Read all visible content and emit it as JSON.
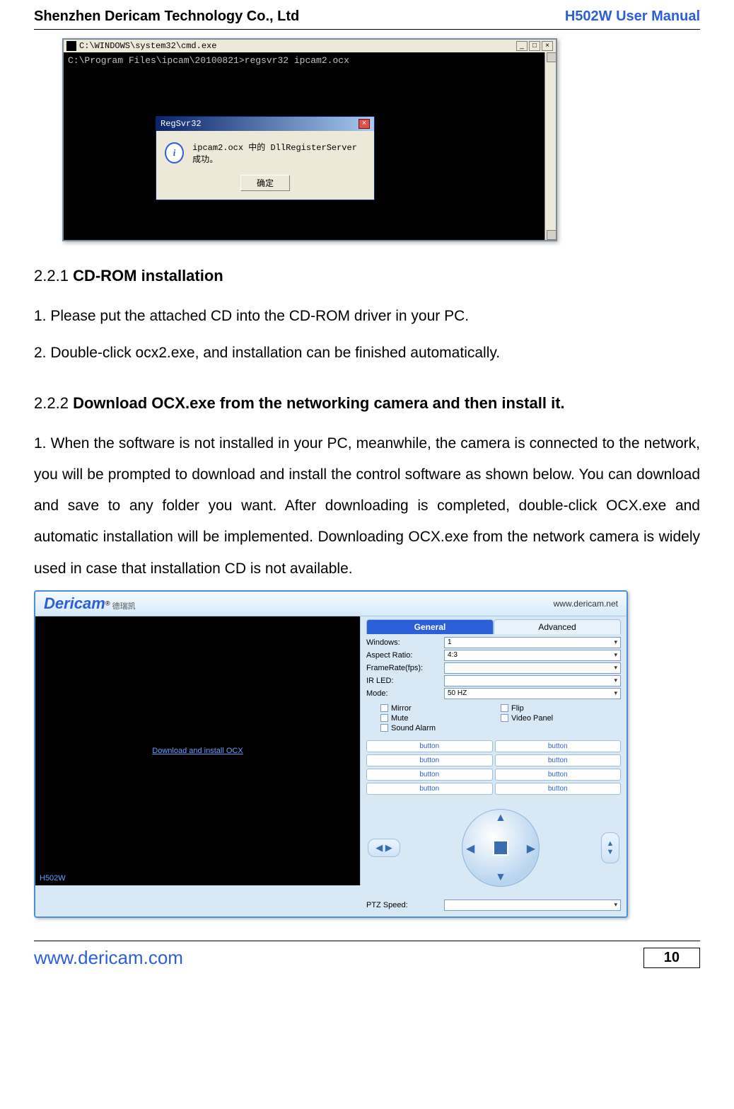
{
  "header": {
    "company": "Shenzhen Dericam Technology Co., Ltd",
    "doc_title": "H502W User Manual"
  },
  "cmd": {
    "title": "C:\\WINDOWS\\system32\\cmd.exe",
    "prompt": "C:\\Program Files\\ipcam\\20100821>regsvr32 ipcam2.ocx",
    "dialog_title": "RegSvr32",
    "dialog_msg": "ipcam2.ocx 中的 DllRegisterServer 成功。",
    "dialog_ok": "确定"
  },
  "sections": {
    "s1_num": "2.2.1",
    "s1_title": "CD-ROM installation",
    "s1_p1": "1. Please put the attached CD into the CD-ROM driver in your PC.",
    "s1_p2": "2. Double-click ocx2.exe, and installation can be finished automatically.",
    "s2_num": "2.2.2",
    "s2_title": "Download OCX.exe from the networking camera and then install it.",
    "s2_p1": "1. When the software is not installed in your PC, meanwhile, the camera is connected to the network, you will be prompted to download and install the control software as shown below. You can download and save to any folder you want. After downloading is completed, double-click OCX.exe and automatic installation will be implemented. Downloading OCX.exe from the network camera is widely used in case that installation CD is not available."
  },
  "ui": {
    "logo": "Dericam",
    "logo_cn": "德瑞凯",
    "url": "www.dericam.net",
    "video_link": "Download and install OCX",
    "model": "H502W",
    "tabs": {
      "general": "General",
      "advanced": "Advanced"
    },
    "rows": {
      "windows": {
        "label": "Windows:",
        "value": "1"
      },
      "aspect": {
        "label": "Aspect Ratio:",
        "value": "4:3"
      },
      "framerate": {
        "label": "FrameRate(fps):",
        "value": ""
      },
      "irled": {
        "label": "IR LED:",
        "value": ""
      },
      "mode": {
        "label": "Mode:",
        "value": "50 HZ"
      }
    },
    "checks": {
      "mirror": "Mirror",
      "flip": "Flip",
      "mute": "Mute",
      "video_panel": "Video Panel",
      "sound_alarm": "Sound Alarm"
    },
    "button_label": "button",
    "ptz_speed_label": "PTZ Speed:"
  },
  "footer": {
    "url": "www.dericam.com",
    "page": "10"
  }
}
